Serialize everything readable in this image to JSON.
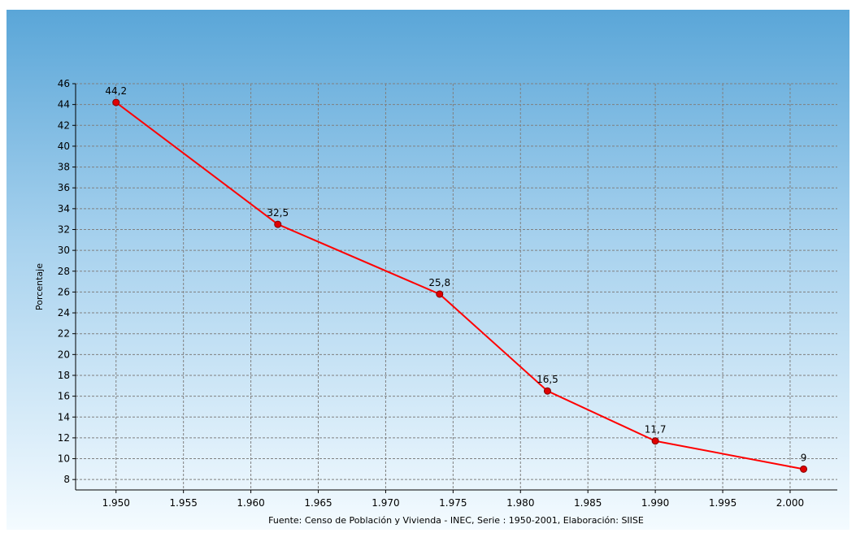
{
  "chart_data": {
    "type": "line",
    "title": "",
    "xlabel": "Fuente: Censo de Población y Vivienda - INEC, Serie : 1950-2001, Elaboración: SIISE",
    "ylabel": "Porcentaje",
    "xlim": [
      1947,
      2003.5
    ],
    "ylim": [
      7,
      46
    ],
    "x_ticks": [
      1950,
      1955,
      1960,
      1965,
      1970,
      1975,
      1980,
      1985,
      1990,
      1995,
      2000
    ],
    "x_tick_labels": [
      "1.950",
      "1.955",
      "1.960",
      "1.965",
      "1.970",
      "1.975",
      "1.980",
      "1.985",
      "1.990",
      "1.995",
      "2.000"
    ],
    "y_ticks": [
      8,
      10,
      12,
      14,
      16,
      18,
      20,
      22,
      24,
      26,
      28,
      30,
      32,
      34,
      36,
      38,
      40,
      42,
      44,
      46
    ],
    "y_tick_labels": [
      "8",
      "10",
      "12",
      "14",
      "16",
      "18",
      "20",
      "22",
      "24",
      "26",
      "28",
      "30",
      "32",
      "34",
      "36",
      "38",
      "40",
      "42",
      "44",
      "46"
    ],
    "grid": true,
    "legend": "none",
    "series": [
      {
        "x": [
          1950,
          1962,
          1974,
          1982,
          1990,
          2001
        ],
        "values": [
          44.2,
          32.5,
          25.8,
          16.5,
          11.7,
          9
        ],
        "labels": [
          "44,2",
          "32,5",
          "25,8",
          "16,5",
          "11,7",
          "9"
        ]
      }
    ],
    "colors": {
      "line": "#ff0000",
      "marker_fill": "#e00000",
      "marker_stroke": "#800000",
      "grid": "#808080",
      "background_top": "#5aa6d8",
      "background_mid": "#a8d2ee",
      "background_bottom": "#f4fbff"
    }
  }
}
